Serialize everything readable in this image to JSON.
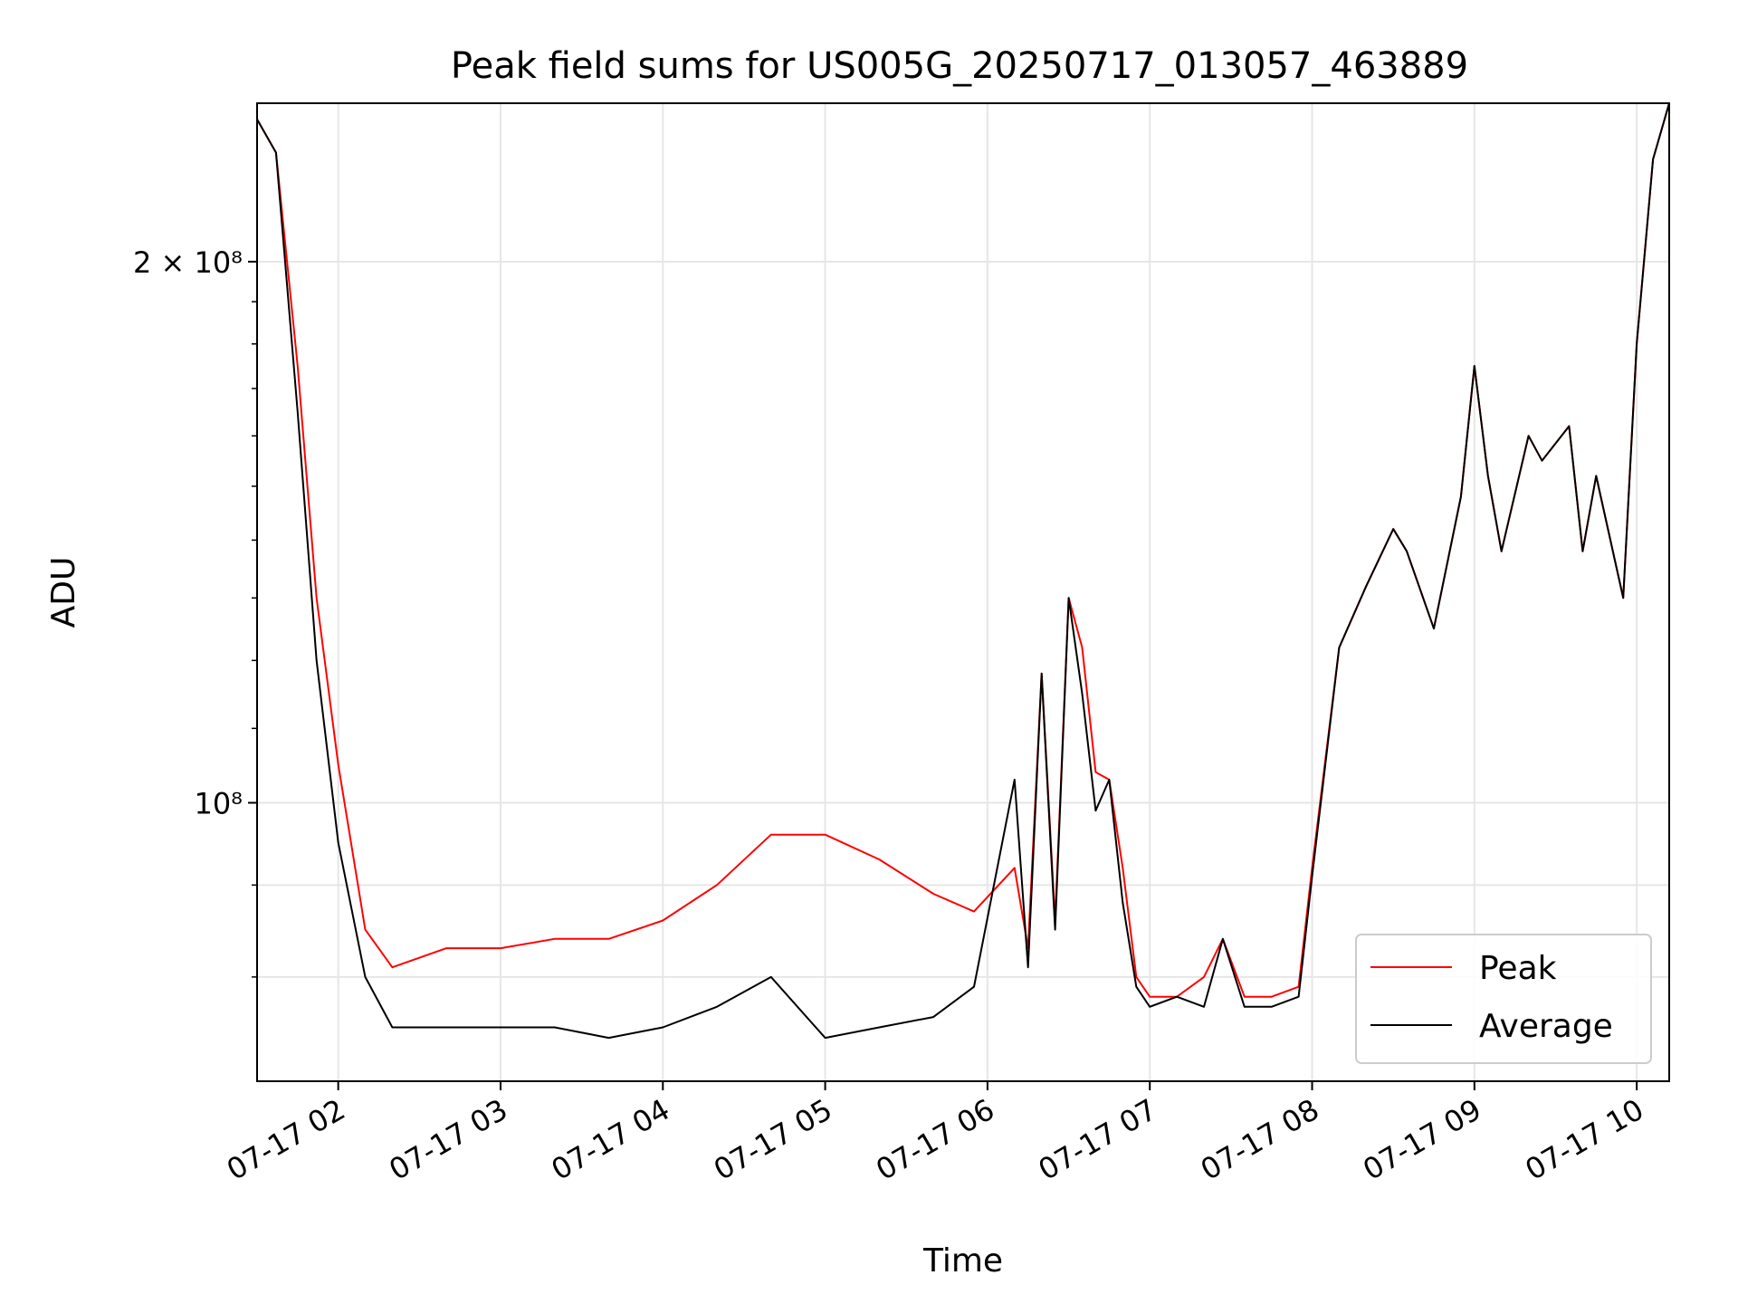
{
  "chart_data": {
    "type": "line",
    "title": "Peak field sums for US005G_20250717_013057_463889",
    "xlabel": "Time",
    "ylabel": "ADU",
    "yscale": "log",
    "grid": true,
    "legend_position": "lower-right",
    "xlim": [
      "07-17 01:30",
      "07-17 10:12"
    ],
    "ylim": [
      70000000,
      245000000
    ],
    "x_ticks": [
      "07-17 02",
      "07-17 03",
      "07-17 04",
      "07-17 05",
      "07-17 06",
      "07-17 07",
      "07-17 08",
      "07-17 09",
      "07-17 10"
    ],
    "y_ticks": [
      {
        "value": 100000000,
        "label": "10⁸"
      },
      {
        "value": 200000000,
        "label": "2 × 10⁸"
      }
    ],
    "series": [
      {
        "name": "Peak",
        "color": "#ff0000",
        "x": [
          "07-17 01:30",
          "07-17 01:37",
          "07-17 01:45",
          "07-17 01:52",
          "07-17 02:00",
          "07-17 02:10",
          "07-17 02:20",
          "07-17 02:40",
          "07-17 03:00",
          "07-17 03:20",
          "07-17 03:40",
          "07-17 04:00",
          "07-17 04:20",
          "07-17 04:40",
          "07-17 05:00",
          "07-17 05:20",
          "07-17 05:40",
          "07-17 05:55",
          "07-17 06:10",
          "07-17 06:15",
          "07-17 06:20",
          "07-17 06:25",
          "07-17 06:30",
          "07-17 06:35",
          "07-17 06:40",
          "07-17 06:45",
          "07-17 06:50",
          "07-17 06:55",
          "07-17 07:00",
          "07-17 07:10",
          "07-17 07:20",
          "07-17 07:27",
          "07-17 07:35",
          "07-17 07:45",
          "07-17 07:55",
          "07-17 08:00",
          "07-17 08:10",
          "07-17 08:20",
          "07-17 08:30",
          "07-17 08:35",
          "07-17 08:45",
          "07-17 08:55",
          "07-17 09:00",
          "07-17 09:05",
          "07-17 09:10",
          "07-17 09:20",
          "07-17 09:25",
          "07-17 09:35",
          "07-17 09:40",
          "07-17 09:45",
          "07-17 09:55",
          "07-17 10:00",
          "07-17 10:06",
          "07-17 10:12"
        ],
        "y": [
          240000000,
          230000000,
          175000000,
          130000000,
          105000000,
          85000000,
          81000000,
          83000000,
          83000000,
          84000000,
          84000000,
          86000000,
          90000000,
          96000000,
          96000000,
          93000000,
          89000000,
          87000000,
          92000000,
          83000000,
          118000000,
          86000000,
          130000000,
          122000000,
          104000000,
          103000000,
          92000000,
          80000000,
          78000000,
          78000000,
          80000000,
          84000000,
          78000000,
          78000000,
          79000000,
          92000000,
          122000000,
          132000000,
          142000000,
          138000000,
          125000000,
          148000000,
          175000000,
          152000000,
          138000000,
          160000000,
          155000000,
          162000000,
          138000000,
          152000000,
          130000000,
          180000000,
          228000000,
          245000000
        ]
      },
      {
        "name": "Average",
        "color": "#000000",
        "x": [
          "07-17 01:30",
          "07-17 01:37",
          "07-17 01:45",
          "07-17 01:52",
          "07-17 02:00",
          "07-17 02:10",
          "07-17 02:20",
          "07-17 02:40",
          "07-17 03:00",
          "07-17 03:20",
          "07-17 03:40",
          "07-17 04:00",
          "07-17 04:20",
          "07-17 04:40",
          "07-17 05:00",
          "07-17 05:20",
          "07-17 05:40",
          "07-17 05:55",
          "07-17 06:10",
          "07-17 06:15",
          "07-17 06:20",
          "07-17 06:25",
          "07-17 06:30",
          "07-17 06:35",
          "07-17 06:40",
          "07-17 06:45",
          "07-17 06:50",
          "07-17 06:55",
          "07-17 07:00",
          "07-17 07:10",
          "07-17 07:20",
          "07-17 07:27",
          "07-17 07:35",
          "07-17 07:45",
          "07-17 07:55",
          "07-17 08:00",
          "07-17 08:10",
          "07-17 08:20",
          "07-17 08:30",
          "07-17 08:35",
          "07-17 08:45",
          "07-17 08:55",
          "07-17 09:00",
          "07-17 09:05",
          "07-17 09:10",
          "07-17 09:20",
          "07-17 09:25",
          "07-17 09:35",
          "07-17 09:40",
          "07-17 09:45",
          "07-17 09:55",
          "07-17 10:00",
          "07-17 10:06",
          "07-17 10:12"
        ],
        "y": [
          240000000,
          230000000,
          165000000,
          120000000,
          95000000,
          80000000,
          75000000,
          75000000,
          75000000,
          75000000,
          74000000,
          75000000,
          77000000,
          80000000,
          74000000,
          75000000,
          76000000,
          79000000,
          103000000,
          81000000,
          118000000,
          85000000,
          130000000,
          115000000,
          99000000,
          103000000,
          88000000,
          79000000,
          77000000,
          78000000,
          77000000,
          84000000,
          77000000,
          77000000,
          78000000,
          91000000,
          122000000,
          132000000,
          142000000,
          138000000,
          125000000,
          148000000,
          175000000,
          152000000,
          138000000,
          160000000,
          155000000,
          162000000,
          138000000,
          152000000,
          130000000,
          180000000,
          228000000,
          245000000
        ]
      }
    ]
  }
}
